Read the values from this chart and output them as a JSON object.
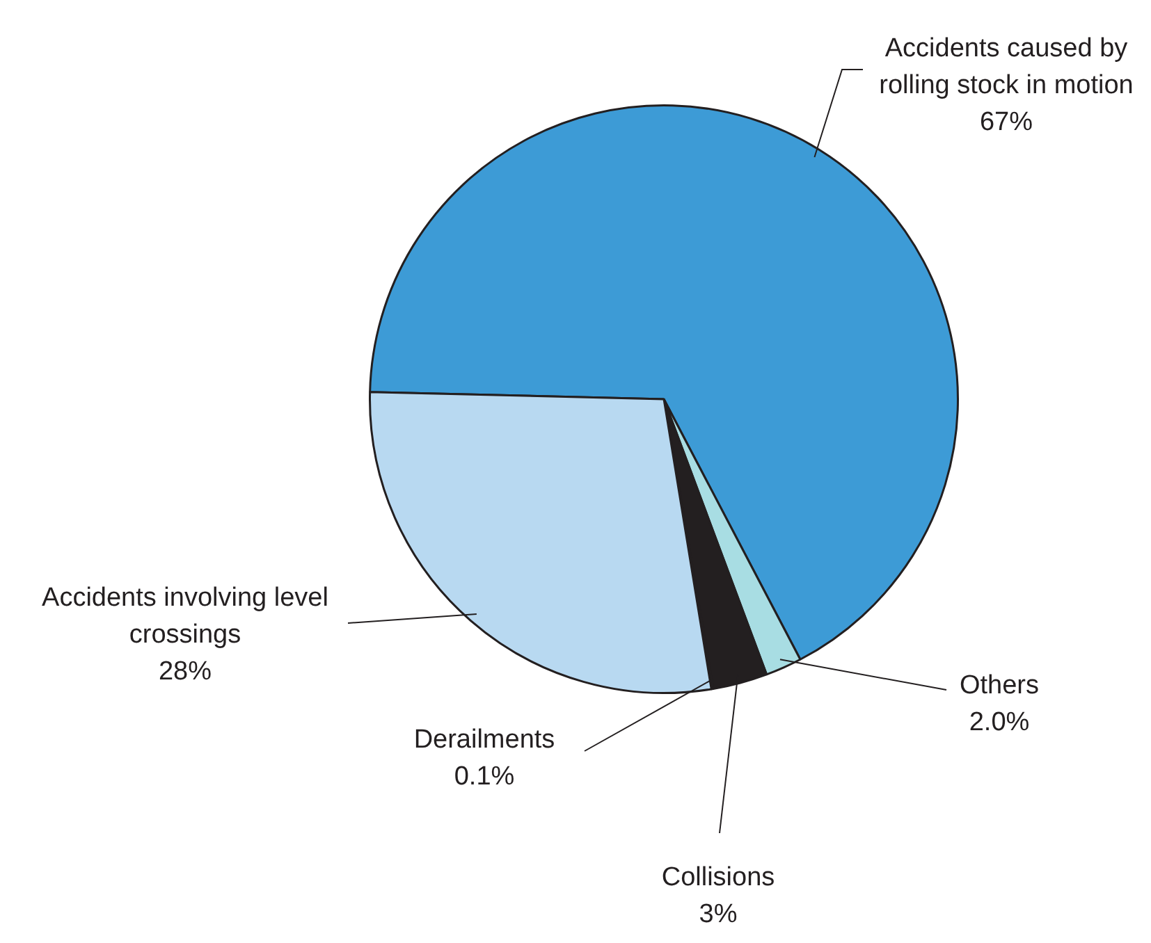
{
  "chart_data": {
    "type": "pie",
    "categories": [
      "Accidents caused by rolling stock in motion",
      "Others",
      "Collisions",
      "Derailments",
      "Accidents involving level crossings"
    ],
    "values": [
      67,
      2.0,
      3,
      0.1,
      28
    ],
    "value_labels": [
      "67%",
      "2.0%",
      "3%",
      "0.1%",
      "28%"
    ],
    "colors": [
      "#3d9bd6",
      "#a8dde3",
      "#231f20",
      "#6fa8cc",
      "#b8d9f1"
    ],
    "legend": false
  }
}
